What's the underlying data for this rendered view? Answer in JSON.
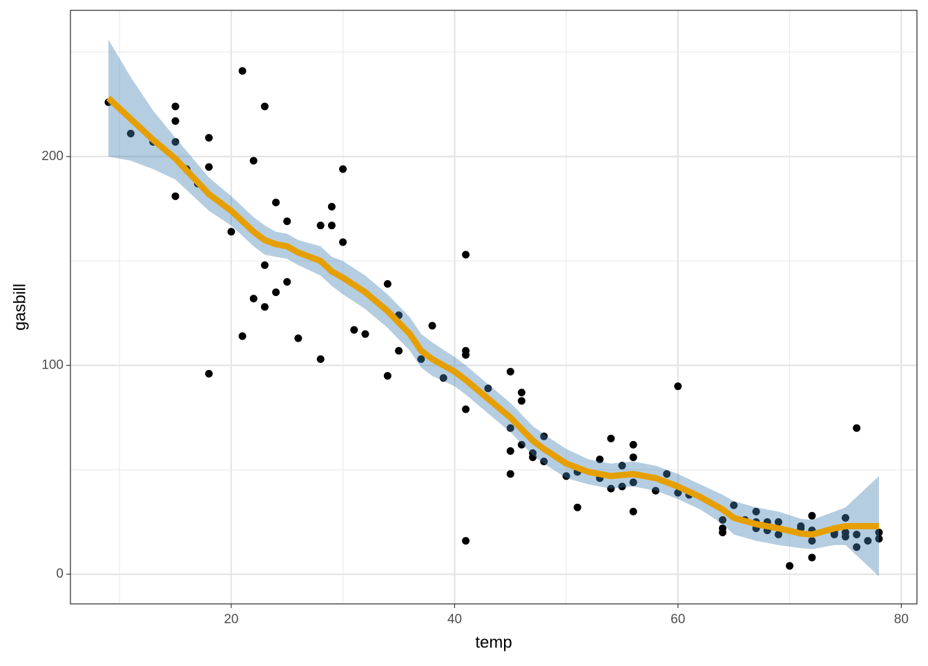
{
  "chart_data": {
    "type": "scatter",
    "x_label": "temp",
    "y_label": "gasbill",
    "xlim": [
      5.6,
      81.4
    ],
    "ylim": [
      -14.2,
      270
    ],
    "xticks": [
      20,
      40,
      60,
      80
    ],
    "yticks": [
      0,
      100,
      200
    ],
    "xminor": [
      10,
      30,
      50,
      70
    ],
    "yminor": [
      50,
      150,
      250
    ],
    "grid": true,
    "color": "#000000",
    "x": [
      9,
      11,
      13,
      15,
      15,
      15,
      15,
      16,
      17,
      18,
      18,
      18,
      20,
      21,
      21,
      22,
      22,
      23,
      23,
      23,
      24,
      24,
      25,
      25,
      26,
      28,
      28,
      29,
      29,
      30,
      30,
      31,
      32,
      34,
      34,
      35,
      35,
      37,
      38,
      39,
      41,
      41,
      41,
      41,
      41,
      43,
      45,
      45,
      45,
      45,
      46,
      46,
      46,
      47,
      47,
      48,
      48,
      50,
      51,
      51,
      53,
      53,
      54,
      54,
      55,
      55,
      56,
      56,
      56,
      56,
      58,
      59,
      60,
      60,
      61,
      64,
      64,
      64,
      65,
      66,
      67,
      67,
      67,
      68,
      68,
      69,
      69,
      70,
      71,
      71,
      72,
      72,
      72,
      72,
      74,
      74,
      75,
      75,
      75,
      76,
      76,
      76,
      77,
      78,
      78
    ],
    "values": [
      226,
      211,
      207,
      224,
      217,
      207,
      181,
      194,
      187,
      209,
      195,
      96,
      164,
      241,
      114,
      198,
      132,
      224,
      148,
      128,
      178,
      135,
      169,
      140,
      113,
      167,
      103,
      176,
      167,
      194,
      159,
      117,
      115,
      139,
      95,
      124,
      107,
      103,
      119,
      94,
      153,
      107,
      105,
      79,
      16,
      89,
      97,
      70,
      59,
      48,
      87,
      83,
      62,
      58,
      56,
      66,
      54,
      47,
      49,
      32,
      55,
      46,
      65,
      41,
      52,
      42,
      62,
      56,
      44,
      30,
      40,
      48,
      90,
      39,
      38,
      26,
      22,
      20,
      33,
      26,
      30,
      25,
      22,
      25,
      21,
      25,
      19,
      4,
      23,
      22,
      28,
      21,
      16,
      8,
      19,
      20,
      27,
      20,
      18,
      70,
      19,
      13,
      16,
      20,
      17
    ],
    "smooth": {
      "color": "#E69F00",
      "band_color": "#4682b4",
      "x": [
        9,
        11,
        13,
        15,
        18,
        20,
        22,
        23,
        24,
        25,
        26,
        28,
        29,
        30,
        32,
        34,
        36,
        37,
        38,
        40,
        41,
        43,
        45,
        47,
        48,
        50,
        52,
        54,
        56,
        58,
        60,
        62,
        64,
        65,
        67,
        69,
        71,
        72,
        74,
        75,
        78
      ],
      "y": [
        228,
        218,
        208,
        199,
        182,
        174,
        164,
        160,
        158,
        157,
        154,
        150,
        145,
        142,
        135,
        126,
        115,
        107,
        103,
        97,
        93,
        84,
        75,
        64,
        60,
        53,
        49,
        47,
        48,
        46,
        42,
        37,
        31,
        27,
        24,
        22,
        19.5,
        19,
        22,
        23,
        23
      ],
      "lower": [
        200,
        198,
        194,
        189,
        174,
        167,
        157,
        153,
        152,
        151,
        148,
        143,
        138,
        134,
        127,
        118,
        107,
        99,
        95,
        90,
        86,
        77,
        68,
        57,
        53,
        46,
        43,
        41,
        42,
        40,
        36,
        31,
        24,
        19,
        16,
        14,
        12.5,
        12,
        14,
        14,
        -1
      ],
      "upper": [
        256,
        238,
        222,
        209,
        190,
        181,
        171,
        167,
        164,
        163,
        160,
        157,
        152,
        150,
        143,
        134,
        123,
        115,
        111,
        104,
        100,
        91,
        82,
        71,
        67,
        60,
        55,
        53,
        54,
        52,
        48,
        43,
        38,
        35,
        32,
        30,
        26.5,
        26,
        30,
        32,
        47
      ]
    }
  }
}
